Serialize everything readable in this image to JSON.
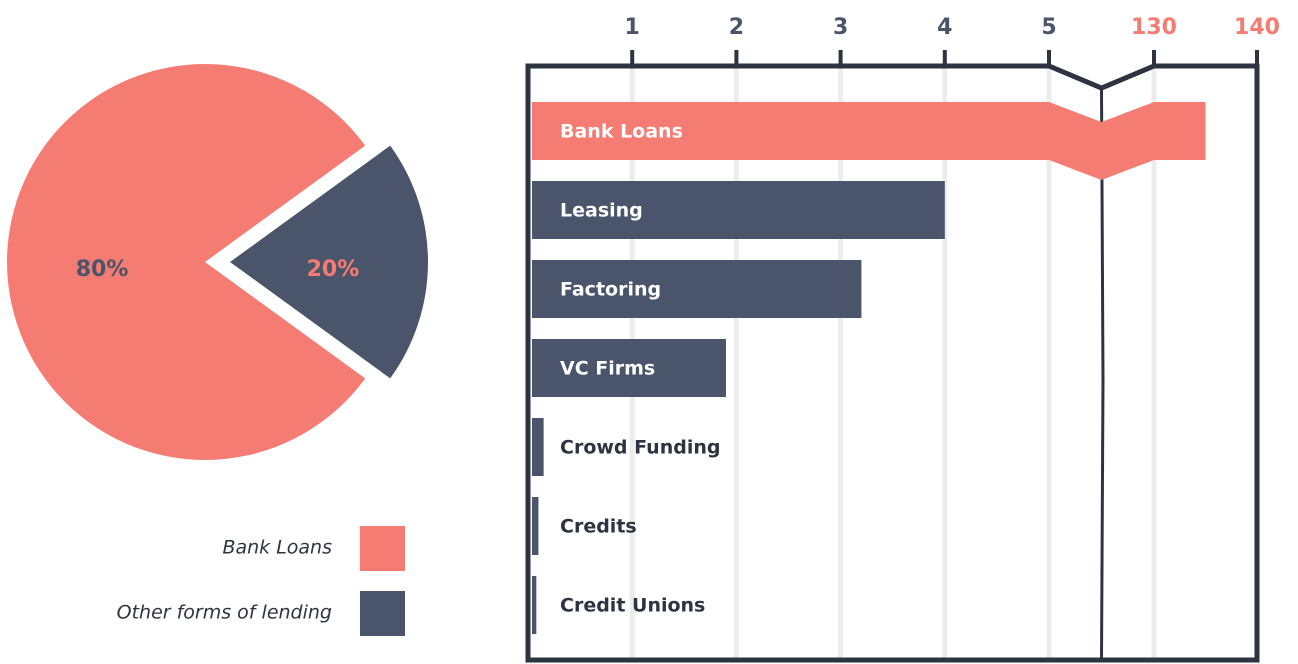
{
  "chart_data": [
    {
      "type": "pie",
      "labels": [
        "Bank Loans",
        "Other forms of lending"
      ],
      "values": [
        80,
        20
      ],
      "value_labels": [
        "80%",
        "20%"
      ],
      "colors": [
        "#f47c72",
        "#4a556b"
      ]
    },
    {
      "type": "bar",
      "orientation": "horizontal",
      "categories": [
        "Bank Loans",
        "Leasing",
        "Factoring",
        "VC Firms",
        "Crowd Funding",
        "Credits",
        "Credit Unions"
      ],
      "values": [
        135,
        4,
        3.2,
        1.9,
        0.15,
        0.1,
        0.08
      ],
      "colors": [
        "#f47c72",
        "#4a556b",
        "#4a556b",
        "#4a556b",
        "#4a556b",
        "#4a556b",
        "#4a556b"
      ],
      "xlim": [
        0,
        140
      ],
      "xticks": [
        1,
        2,
        3,
        4,
        5,
        130,
        140
      ],
      "axis_break": [
        5,
        130
      ],
      "grid": true
    }
  ]
}
